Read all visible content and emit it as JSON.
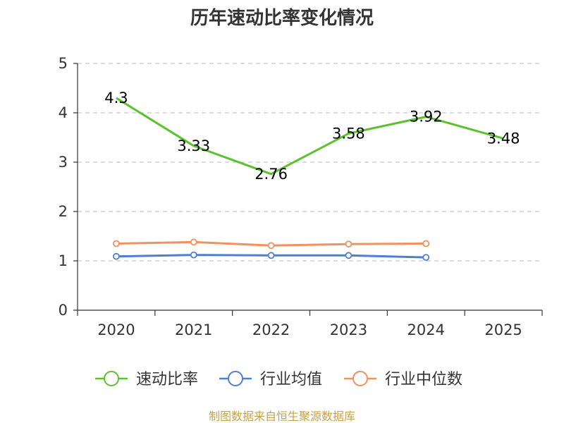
{
  "chart_data": {
    "type": "line",
    "title": "历年速动比率变化情况",
    "categories": [
      "2020",
      "2021",
      "2022",
      "2023",
      "2024",
      "2025"
    ],
    "yticks": [
      "0",
      "1",
      "2",
      "3",
      "4",
      "5"
    ],
    "ylim": [
      0,
      5
    ],
    "grid": true,
    "legend_position": "bottom",
    "series": [
      {
        "name": "速动比率",
        "color": "#5cc22c",
        "values": [
          4.3,
          3.33,
          2.76,
          3.58,
          3.92,
          3.48
        ],
        "labels": [
          "4.3",
          "3.33",
          "2.76",
          "3.58",
          "3.92",
          "3.48"
        ]
      },
      {
        "name": "行业均值",
        "color": "#4e7fd6",
        "values": [
          1.09,
          1.12,
          1.11,
          1.11,
          1.07,
          null
        ]
      },
      {
        "name": "行业中位数",
        "color": "#f0915f",
        "values": [
          1.35,
          1.38,
          1.31,
          1.34,
          1.35,
          null
        ]
      }
    ]
  },
  "source": "制图数据来自恒生聚源数据库"
}
